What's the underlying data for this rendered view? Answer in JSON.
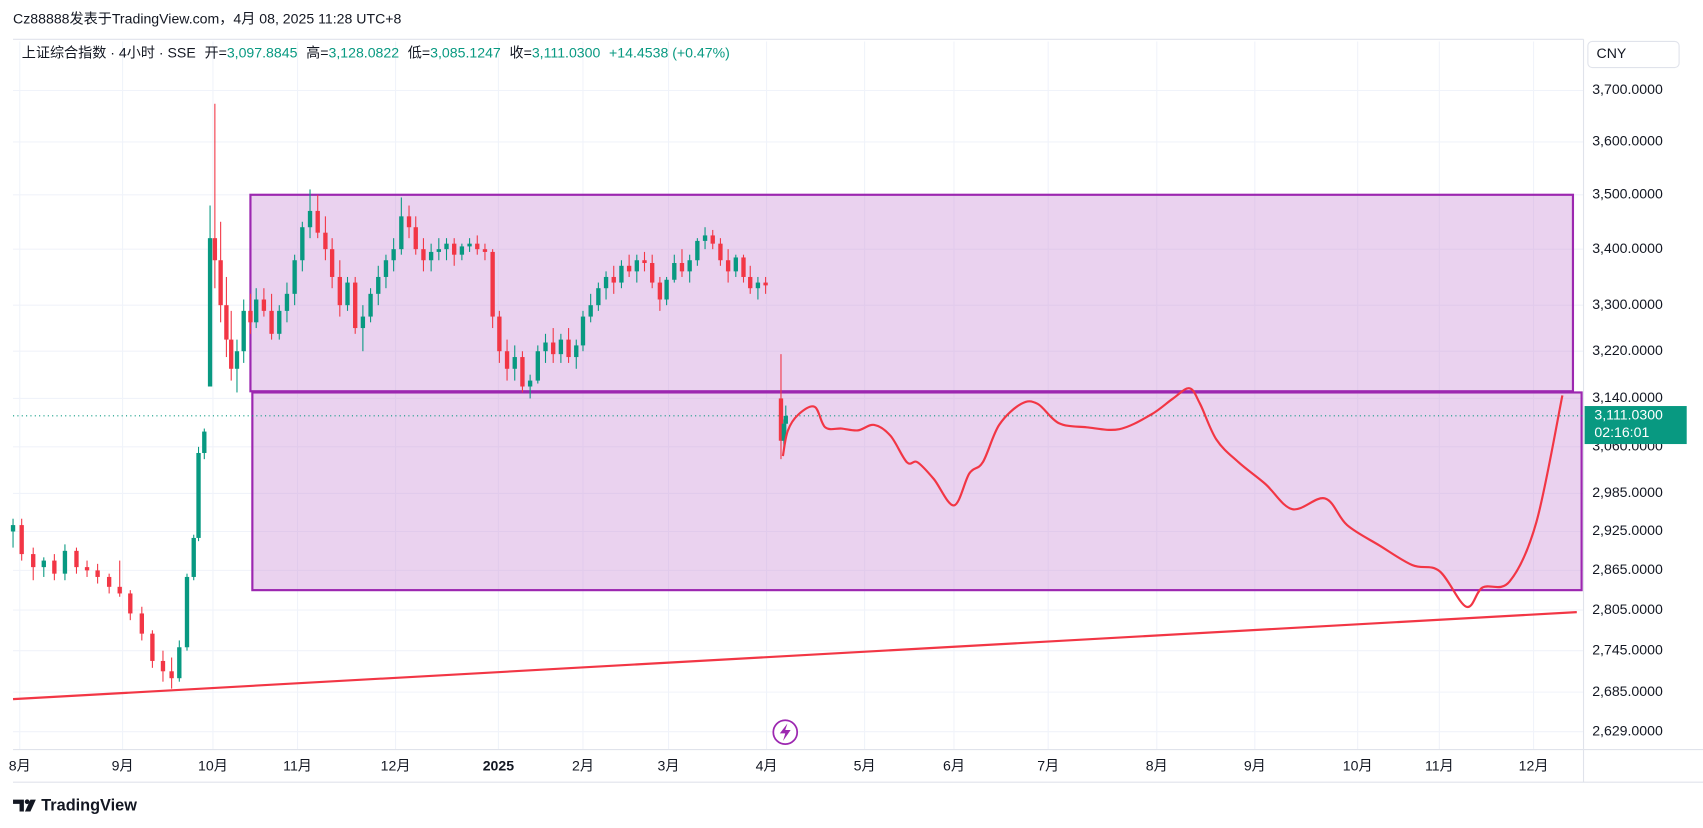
{
  "header": {
    "attribution": "Cz88888发表于TradingView.com，4月 08, 2025 11:28 UTC+8",
    "symbol": "上证综合指数 · 4小时 · SSE",
    "ohlc": [
      {
        "label": "开=",
        "value": "3,097.8845"
      },
      {
        "label": "高=",
        "value": "3,128.0822"
      },
      {
        "label": "低=",
        "value": "3,085.1247"
      },
      {
        "label": "收=",
        "value": "3,111.0300"
      }
    ],
    "change": "+14.4538 (+0.47%)"
  },
  "currency": "CNY",
  "footer": {
    "brand": "TradingView"
  },
  "chart_data": {
    "type": "candlestick",
    "log_scale": true,
    "grid": true,
    "up_color": "#089981",
    "down_color": "#f23645",
    "ylim": [
      2604,
      3798
    ],
    "yticks": [
      {
        "value": 2629,
        "label": "2,629.0000"
      },
      {
        "value": 2685,
        "label": "2,685.0000"
      },
      {
        "value": 2745,
        "label": "2,745.0000"
      },
      {
        "value": 2805,
        "label": "2,805.0000"
      },
      {
        "value": 2865,
        "label": "2,865.0000"
      },
      {
        "value": 2925,
        "label": "2,925.0000"
      },
      {
        "value": 2985,
        "label": "2,985.0000"
      },
      {
        "value": 3060,
        "label": "3,060.0000"
      },
      {
        "value": 3140,
        "label": "3,140.0000"
      },
      {
        "value": 3220,
        "label": "3,220.0000"
      },
      {
        "value": 3300,
        "label": "3,300.0000"
      },
      {
        "value": 3400,
        "label": "3,400.0000"
      },
      {
        "value": 3500,
        "label": "3,500.0000"
      },
      {
        "value": 3600,
        "label": "3,600.0000"
      },
      {
        "value": 3700,
        "label": "3,700.0000"
      }
    ],
    "xlim": [
      -0.07,
      16.27
    ],
    "xticks": [
      {
        "value": 0,
        "label": "8月"
      },
      {
        "value": 1.07,
        "label": "9月"
      },
      {
        "value": 2.01,
        "label": "10月"
      },
      {
        "value": 2.89,
        "label": "11月"
      },
      {
        "value": 3.91,
        "label": "12月"
      },
      {
        "value": 4.98,
        "label": "2025"
      },
      {
        "value": 5.86,
        "label": "2月"
      },
      {
        "value": 6.75,
        "label": "3月"
      },
      {
        "value": 7.77,
        "label": "4月"
      },
      {
        "value": 8.79,
        "label": "5月"
      },
      {
        "value": 9.72,
        "label": "6月"
      },
      {
        "value": 10.7,
        "label": "7月"
      },
      {
        "value": 11.83,
        "label": "8月"
      },
      {
        "value": 12.85,
        "label": "9月"
      },
      {
        "value": 13.92,
        "label": "10月"
      },
      {
        "value": 14.77,
        "label": "11月"
      },
      {
        "value": 15.75,
        "label": "12月"
      }
    ],
    "candles": {
      "x": [
        -0.07,
        0.02,
        0.14,
        0.25,
        0.36,
        0.47,
        0.59,
        0.7,
        0.81,
        0.93,
        1.04,
        1.15,
        1.27,
        1.38,
        1.49,
        1.58,
        1.66,
        1.74,
        1.81,
        1.86,
        1.92,
        1.98,
        2.03,
        2.09,
        2.15,
        2.2,
        2.26,
        2.33,
        2.4,
        2.46,
        2.54,
        2.62,
        2.7,
        2.78,
        2.86,
        2.94,
        3.02,
        3.1,
        3.18,
        3.25,
        3.33,
        3.41,
        3.49,
        3.57,
        3.65,
        3.73,
        3.81,
        3.89,
        3.97,
        4.05,
        4.12,
        4.2,
        4.28,
        4.36,
        4.44,
        4.52,
        4.6,
        4.68,
        4.76,
        4.84,
        4.92,
        4.99,
        5.07,
        5.15,
        5.23,
        5.31,
        5.39,
        5.47,
        5.55,
        5.63,
        5.71,
        5.79,
        5.86,
        5.94,
        6.02,
        6.1,
        6.18,
        6.26,
        6.34,
        6.42,
        6.5,
        6.58,
        6.66,
        6.73,
        6.81,
        6.89,
        6.97,
        7.05,
        7.13,
        7.21,
        7.29,
        7.37,
        7.45,
        7.53,
        7.6,
        7.68,
        7.76,
        7.92,
        7.95,
        7.97
      ],
      "open": [
        2925,
        2935,
        2890,
        2870,
        2880,
        2860,
        2895,
        2870,
        2865,
        2855,
        2840,
        2830,
        2800,
        2770,
        2730,
        2715,
        2705,
        2750,
        2855,
        2915,
        3050,
        3160,
        3420,
        3380,
        3300,
        3240,
        3190,
        3220,
        3290,
        3270,
        3310,
        3290,
        3250,
        3290,
        3320,
        3380,
        3440,
        3470,
        3430,
        3400,
        3350,
        3300,
        3340,
        3260,
        3280,
        3320,
        3350,
        3380,
        3400,
        3460,
        3440,
        3400,
        3380,
        3395,
        3400,
        3410,
        3390,
        3405,
        3410,
        3400,
        3395,
        3280,
        3220,
        3190,
        3210,
        3160,
        3170,
        3220,
        3235,
        3215,
        3240,
        3210,
        3230,
        3280,
        3300,
        3330,
        3350,
        3340,
        3370,
        3360,
        3380,
        3375,
        3340,
        3310,
        3345,
        3375,
        3360,
        3380,
        3415,
        3425,
        3410,
        3380,
        3360,
        3385,
        3350,
        3330,
        3340,
        3140,
        3070,
        3097.8845
      ],
      "high": [
        2945,
        2945,
        2900,
        2885,
        2890,
        2905,
        2900,
        2880,
        2875,
        2860,
        2880,
        2835,
        2810,
        2775,
        2745,
        2735,
        2760,
        2860,
        2920,
        3060,
        3090,
        3480,
        3674,
        3450,
        3350,
        3290,
        3240,
        3310,
        3320,
        3330,
        3330,
        3320,
        3300,
        3340,
        3390,
        3450,
        3510,
        3500,
        3460,
        3420,
        3380,
        3350,
        3350,
        3300,
        3330,
        3370,
        3390,
        3420,
        3495,
        3480,
        3460,
        3420,
        3410,
        3420,
        3420,
        3420,
        3410,
        3420,
        3425,
        3410,
        3400,
        3290,
        3240,
        3230,
        3220,
        3180,
        3230,
        3250,
        3260,
        3250,
        3260,
        3240,
        3290,
        3320,
        3340,
        3360,
        3370,
        3380,
        3390,
        3390,
        3395,
        3390,
        3350,
        3350,
        3390,
        3400,
        3390,
        3420,
        3440,
        3435,
        3420,
        3400,
        3390,
        3390,
        3370,
        3350,
        3350,
        3215,
        3105,
        3128.0822
      ],
      "low": [
        2900,
        2880,
        2850,
        2855,
        2850,
        2850,
        2860,
        2855,
        2845,
        2830,
        2825,
        2790,
        2760,
        2720,
        2700,
        2690,
        2700,
        2745,
        2850,
        2910,
        3040,
        3160,
        3330,
        3270,
        3210,
        3170,
        3150,
        3200,
        3250,
        3260,
        3280,
        3240,
        3240,
        3270,
        3300,
        3360,
        3420,
        3420,
        3380,
        3330,
        3280,
        3290,
        3250,
        3220,
        3270,
        3300,
        3330,
        3360,
        3390,
        3420,
        3390,
        3360,
        3360,
        3380,
        3380,
        3370,
        3380,
        3395,
        3390,
        3380,
        3260,
        3200,
        3170,
        3170,
        3150,
        3140,
        3165,
        3200,
        3200,
        3200,
        3200,
        3190,
        3220,
        3270,
        3290,
        3310,
        3320,
        3330,
        3350,
        3340,
        3360,
        3330,
        3290,
        3300,
        3340,
        3350,
        3340,
        3370,
        3400,
        3400,
        3370,
        3340,
        3350,
        3340,
        3320,
        3310,
        3320,
        3040,
        3055,
        3085.1247
      ],
      "close": [
        2935,
        2890,
        2870,
        2880,
        2860,
        2895,
        2870,
        2865,
        2855,
        2840,
        2830,
        2800,
        2770,
        2730,
        2715,
        2705,
        2750,
        2855,
        2915,
        3050,
        3085,
        3420,
        3380,
        3300,
        3240,
        3190,
        3220,
        3290,
        3270,
        3310,
        3290,
        3250,
        3290,
        3320,
        3380,
        3440,
        3470,
        3430,
        3400,
        3350,
        3300,
        3340,
        3260,
        3280,
        3320,
        3350,
        3380,
        3400,
        3460,
        3440,
        3400,
        3380,
        3395,
        3400,
        3410,
        3390,
        3405,
        3410,
        3400,
        3395,
        3280,
        3220,
        3190,
        3210,
        3160,
        3170,
        3220,
        3235,
        3215,
        3240,
        3210,
        3230,
        3280,
        3300,
        3330,
        3350,
        3340,
        3370,
        3360,
        3380,
        3375,
        3340,
        3310,
        3345,
        3375,
        3360,
        3380,
        3415,
        3425,
        3410,
        3380,
        3360,
        3385,
        3350,
        3330,
        3340,
        3335,
        3070,
        3098,
        3111.03
      ]
    },
    "projection": {
      "color": "#f23645",
      "x": [
        7.94,
        7.99,
        8.1,
        8.27,
        8.38,
        8.55,
        8.72,
        8.89,
        9.06,
        9.23,
        9.34,
        9.51,
        9.72,
        9.88,
        10.02,
        10.19,
        10.42,
        10.59,
        10.81,
        11.1,
        11.44,
        11.77,
        12.0,
        12.17,
        12.28,
        12.45,
        12.68,
        12.96,
        13.24,
        13.58,
        13.81,
        14.15,
        14.49,
        14.77,
        15.05,
        15.22,
        15.5,
        15.78,
        16.05
      ],
      "values": [
        3045,
        3086,
        3113,
        3126,
        3092,
        3090,
        3087,
        3096,
        3078,
        3035,
        3035,
        3008,
        2966,
        3017,
        3035,
        3096,
        3131,
        3131,
        3099,
        3092,
        3089,
        3113,
        3140,
        3157,
        3131,
        3072,
        3035,
        3000,
        2960,
        2977,
        2935,
        2903,
        2873,
        2864,
        2810,
        2839,
        2848,
        2940,
        3145
      ]
    },
    "trendline": {
      "color": "#f23645",
      "x": [
        -0.07,
        16.2
      ],
      "values": [
        2675,
        2802
      ]
    },
    "zone_stroke": "#9c27b0",
    "zone_fill": "rgba(206,147,216,0.42)",
    "zones": [
      {
        "x": [
          2.4,
          16.16
        ],
        "y": [
          3500,
          3152
        ]
      },
      {
        "x": [
          2.42,
          16.25
        ],
        "y": [
          3150,
          2835
        ]
      }
    ],
    "last_price": {
      "value": 3111.03,
      "label": "3,111.0300"
    },
    "countdown": "02:16:01"
  }
}
